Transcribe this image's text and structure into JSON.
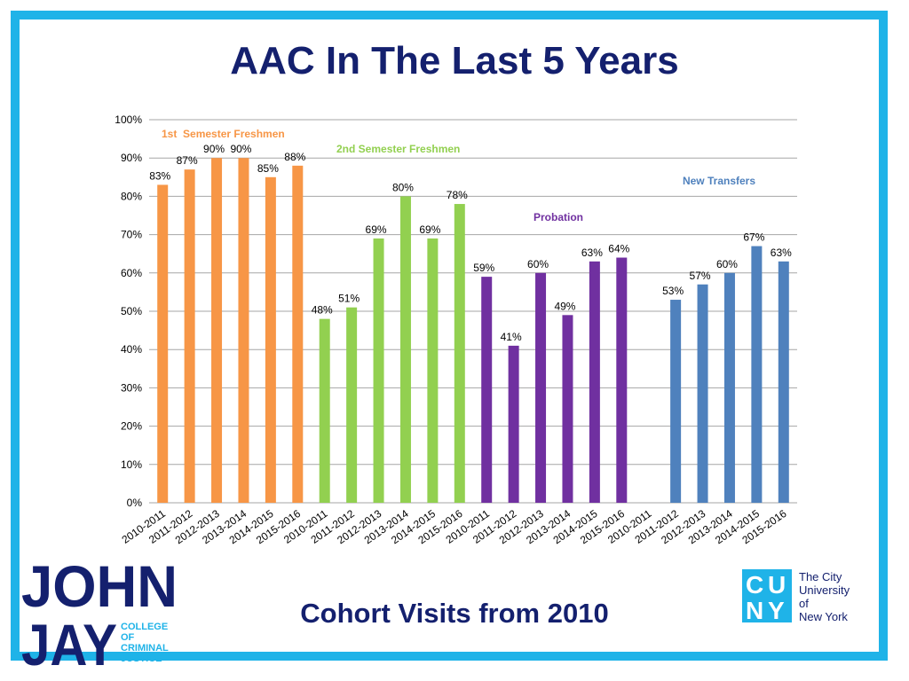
{
  "header": {
    "title": "AAC In The Last 5 Years"
  },
  "footer": {
    "subtitle": "Cohort Visits from 2010"
  },
  "logos": {
    "john_jay": {
      "word1": "JOHN",
      "word2": "JAY",
      "line1": "COLLEGE",
      "line2": "OF",
      "line3": "CRIMINAL",
      "line4": "JUSTICE"
    },
    "cuny": {
      "c": "C",
      "u": "U",
      "n": "N",
      "y": "Y",
      "line1": "The City",
      "line2": "University",
      "line3": "of",
      "line4": "New York"
    }
  },
  "chart_data": {
    "type": "bar",
    "ylim": [
      0,
      100
    ],
    "yticks": [
      "0%",
      "10%",
      "20%",
      "30%",
      "40%",
      "50%",
      "60%",
      "70%",
      "80%",
      "90%",
      "100%"
    ],
    "grid": true,
    "series": [
      {
        "name": "1st  Semester Freshmen",
        "color": "#f79646",
        "categories": [
          "2010-2011",
          "2011-2012",
          "2012-2013",
          "2013-2014",
          "2014-2015",
          "2015-2016"
        ],
        "values": [
          83,
          87,
          90,
          90,
          85,
          88
        ],
        "labels": [
          "83%",
          "87%",
          "90%",
          "90%",
          "85%",
          "88%"
        ]
      },
      {
        "name": "2nd Semester Freshmen",
        "color": "#92d050",
        "categories": [
          "2010-2011",
          "2011-2012",
          "2012-2013",
          "2013-2014",
          "2014-2015",
          "2015-2016"
        ],
        "values": [
          48,
          51,
          69,
          80,
          69,
          78
        ],
        "labels": [
          "48%",
          "51%",
          "69%",
          "80%",
          "69%",
          "78%"
        ]
      },
      {
        "name": "Probation",
        "color": "#7030a0",
        "categories": [
          "2010-2011",
          "2011-2012",
          "2012-2013",
          "2013-2014",
          "2014-2015",
          "2015-2016"
        ],
        "values": [
          59,
          41,
          60,
          49,
          63,
          64
        ],
        "labels": [
          "59%",
          "41%",
          "60%",
          "49%",
          "63%",
          "64%"
        ]
      },
      {
        "name": "New Transfers",
        "color": "#4f81bd",
        "categories": [
          "2010-2011",
          "2011-2012",
          "2012-2013",
          "2013-2014",
          "2014-2015",
          "2015-2016"
        ],
        "values": [
          null,
          53,
          57,
          60,
          67,
          63
        ],
        "labels": [
          "",
          "53%",
          "57%",
          "60%",
          "67%",
          "63%"
        ]
      }
    ]
  }
}
